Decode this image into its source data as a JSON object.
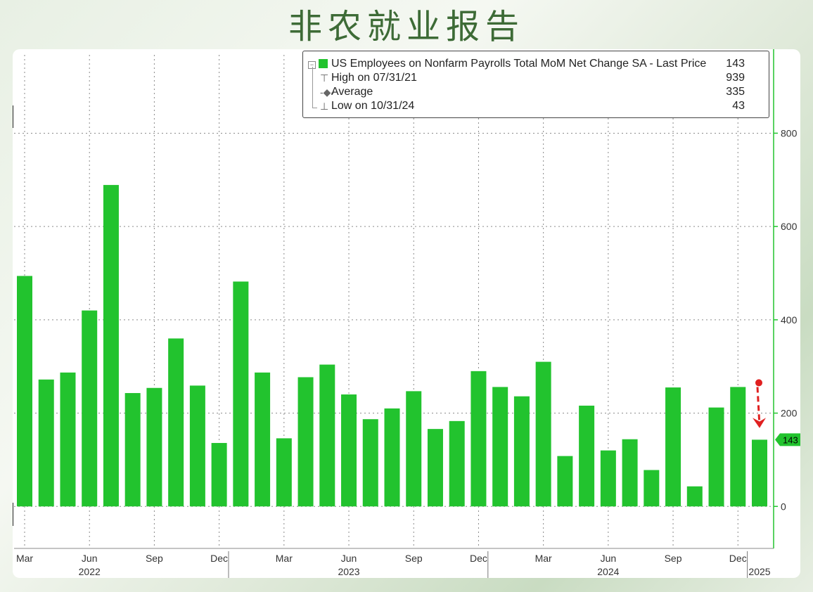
{
  "page_title": "非农就业报告",
  "legend": {
    "series_label": "US Employees on Nonfarm Payrolls Total MoM Net Change SA - Last Price",
    "last_price": "143",
    "high_label": "High on 07/31/21",
    "high_value": "939",
    "average_label": "Average",
    "average_value": "335",
    "low_label": "Low on 10/31/24",
    "low_value": "43"
  },
  "chart_data": {
    "type": "bar",
    "title": "",
    "xlabel": "",
    "ylabel": "",
    "ylim": [
      -90,
      980
    ],
    "yticks": [
      0,
      200,
      400,
      600,
      800
    ],
    "grid": true,
    "categories": [
      "Mar 2022",
      "Apr 2022",
      "May 2022",
      "Jun 2022",
      "Jul 2022",
      "Aug 2022",
      "Sep 2022",
      "Oct 2022",
      "Nov 2022",
      "Dec 2022",
      "Jan 2023",
      "Feb 2023",
      "Mar 2023",
      "Apr 2023",
      "May 2023",
      "Jun 2023",
      "Jul 2023",
      "Aug 2023",
      "Sep 2023",
      "Oct 2023",
      "Nov 2023",
      "Dec 2023",
      "Jan 2024",
      "Feb 2024",
      "Mar 2024",
      "Apr 2024",
      "May 2024",
      "Jun 2024",
      "Jul 2024",
      "Aug 2024",
      "Sep 2024",
      "Oct 2024",
      "Nov 2024",
      "Dec 2024",
      "Jan 2025"
    ],
    "values": [
      494,
      272,
      287,
      420,
      689,
      243,
      254,
      360,
      259,
      136,
      482,
      287,
      146,
      277,
      304,
      240,
      187,
      210,
      247,
      166,
      183,
      290,
      256,
      236,
      310,
      108,
      216,
      120,
      144,
      78,
      255,
      43,
      212,
      256,
      143
    ],
    "x_tick_labels": [
      "Mar",
      "Jun",
      "Sep",
      "Dec",
      "Mar",
      "Jun",
      "Sep",
      "Dec",
      "Mar",
      "Jun",
      "Sep",
      "Dec"
    ],
    "x_tick_index": [
      0,
      3,
      6,
      9,
      12,
      15,
      18,
      21,
      24,
      27,
      30,
      33
    ],
    "year_labels": [
      "2022",
      "2023",
      "2024",
      "2025"
    ],
    "year_label_index": [
      3,
      15,
      27,
      34
    ],
    "year_divider_index": [
      9.5,
      21.5,
      33.5
    ],
    "last_value_label": "143",
    "bar_color": "#22c32e",
    "annotation": "red arrow pointing down to last bar",
    "annotation_color": "#e02020"
  },
  "colors": {
    "bar": "#22c32e",
    "axis": "#22c32e",
    "grid": "#8a8a8a",
    "title": "#3d6b36",
    "arrow": "#e02020"
  }
}
